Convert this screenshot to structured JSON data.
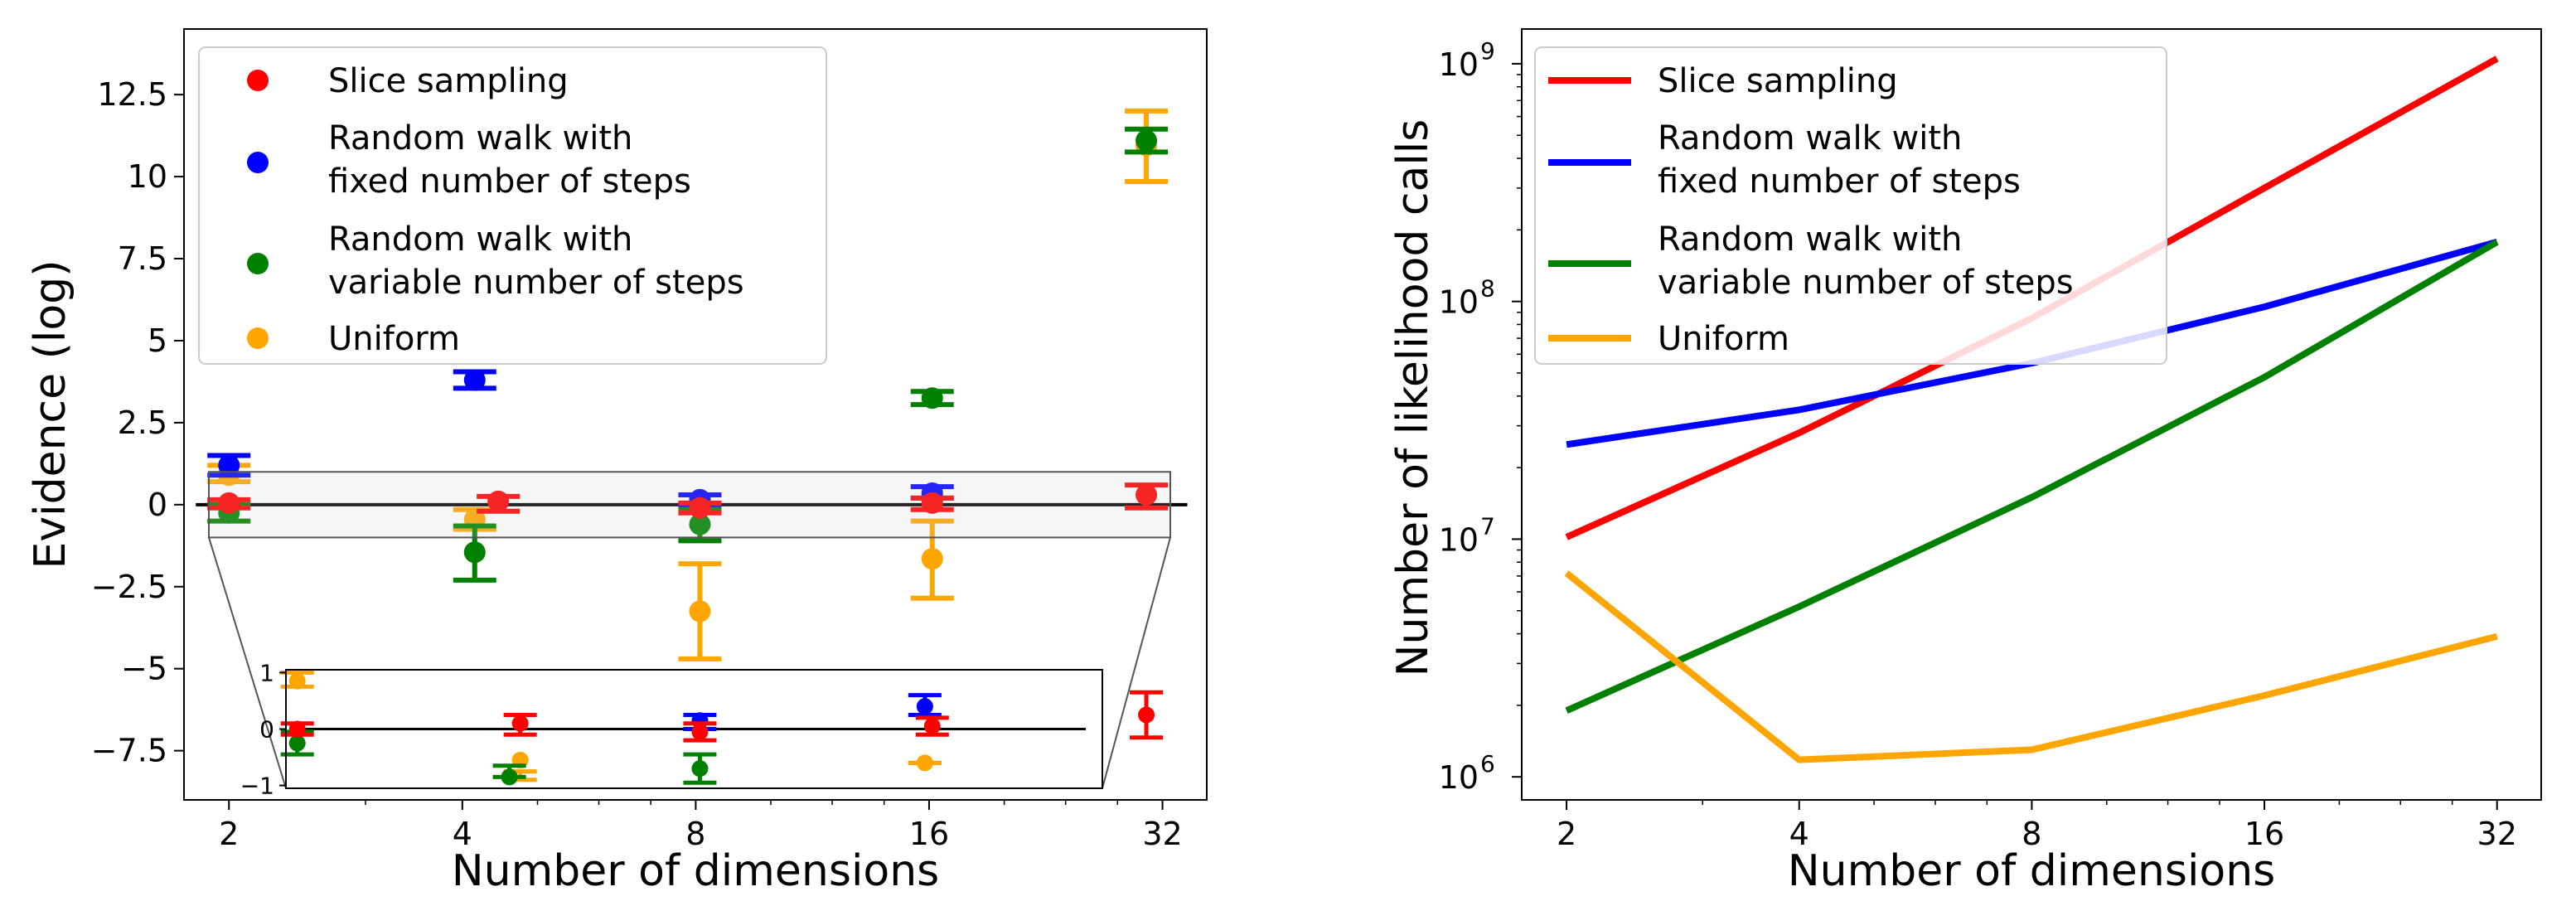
{
  "colors": {
    "slice": "#ff0000",
    "rw_fixed": "#0000ff",
    "rw_variable": "#008000",
    "uniform": "#ffa500"
  },
  "chart_data": [
    {
      "type": "scatter",
      "subtype": "errorbar",
      "xlabel": "Number of dimensions",
      "ylabel": "Evidence (log)",
      "xscale": "log2",
      "x_ticks": [
        2,
        4,
        8,
        16,
        32
      ],
      "x_tick_labels": [
        "2",
        "4",
        "8",
        "16",
        "32"
      ],
      "y_ticks": [
        -7.5,
        -5,
        -2.5,
        0,
        2.5,
        5,
        7.5,
        10,
        12.5
      ],
      "y_tick_labels": [
        "−7.5",
        "−5",
        "−2.5",
        "0",
        "2.5",
        "5",
        "7.5",
        "10",
        "12.5"
      ],
      "ylim": [
        -9.0,
        14.5
      ],
      "xlim": [
        1.75,
        36.5
      ],
      "reference_line": 0,
      "legend": {
        "placement": "top-left"
      },
      "series": [
        {
          "key": "slice",
          "name": "Slice sampling",
          "legend_lines": [
            "Slice sampling"
          ],
          "color": "#ff0000",
          "points": [
            {
              "x": 2.0,
              "y": 0.05,
              "lo": -0.1,
              "hi": 0.15
            },
            {
              "x": 4.45,
              "y": 0.1,
              "lo": -0.2,
              "hi": 0.25
            },
            {
              "x": 8.1,
              "y": -0.1,
              "lo": -0.25,
              "hi": 0.05
            },
            {
              "x": 16.15,
              "y": 0.05,
              "lo": -0.15,
              "hi": 0.2
            },
            {
              "x": 30.5,
              "y": 0.3,
              "lo": -0.1,
              "hi": 0.6
            }
          ]
        },
        {
          "key": "rw_fixed",
          "name": "Random walk with fixed number of steps",
          "legend_lines": [
            "Random walk with",
            "fixed number of steps"
          ],
          "color": "#0000ff",
          "points": [
            {
              "x": 2.0,
              "y": 1.2,
              "lo": 0.9,
              "hi": 1.5
            },
            {
              "x": 4.15,
              "y": 3.8,
              "lo": 3.55,
              "hi": 4.05
            },
            {
              "x": 8.1,
              "y": 0.15,
              "lo": 0.0,
              "hi": 0.3
            },
            {
              "x": 16.15,
              "y": 0.35,
              "lo": 0.2,
              "hi": 0.55
            }
          ]
        },
        {
          "key": "rw_variable",
          "name": "Random walk with variable number of steps",
          "legend_lines": [
            "Random walk with",
            "variable number of steps"
          ],
          "color": "#008000",
          "points": [
            {
              "x": 2.0,
              "y": -0.25,
              "lo": -0.5,
              "hi": 0.0
            },
            {
              "x": 4.15,
              "y": -1.45,
              "lo": -2.3,
              "hi": -0.65
            },
            {
              "x": 8.1,
              "y": -0.6,
              "lo": -1.1,
              "hi": -0.15
            },
            {
              "x": 16.15,
              "y": 3.25,
              "lo": 3.05,
              "hi": 3.45
            },
            {
              "x": 30.5,
              "y": 11.1,
              "lo": 10.75,
              "hi": 11.45
            }
          ]
        },
        {
          "key": "uniform",
          "name": "Uniform",
          "legend_lines": [
            "Uniform"
          ],
          "color": "#ffa500",
          "points": [
            {
              "x": 2.0,
              "y": 0.9,
              "lo": 0.7,
              "hi": 1.2
            },
            {
              "x": 4.15,
              "y": -0.45,
              "lo": -0.75,
              "hi": -0.15
            },
            {
              "x": 8.1,
              "y": -3.25,
              "lo": -4.7,
              "hi": -1.8
            },
            {
              "x": 16.15,
              "y": -1.65,
              "lo": -2.85,
              "hi": -0.5
            },
            {
              "x": 30.5,
              "y": 10.95,
              "lo": 9.85,
              "hi": 12.0
            }
          ]
        }
      ],
      "zoom_region": {
        "ylim": [
          -1.0,
          1.0
        ]
      },
      "inset": {
        "ylim": [
          -1.05,
          1.05
        ],
        "y_ticks": [
          -1,
          0,
          1
        ],
        "y_tick_labels": [
          "−1",
          "0",
          "1"
        ],
        "series": [
          {
            "key": "slice",
            "points": [
              {
                "x": 2.45,
                "y": 0.0,
                "lo": -0.1,
                "hi": 0.1
              },
              {
                "x": 4.75,
                "y": 0.1,
                "lo": -0.1,
                "hi": 0.25
              },
              {
                "x": 8.1,
                "y": -0.05,
                "lo": -0.2,
                "hi": 0.1
              },
              {
                "x": 16.15,
                "y": 0.05,
                "lo": -0.1,
                "hi": 0.2
              },
              {
                "x": 30.5,
                "y": 0.25,
                "lo": -0.15,
                "hi": 0.65
              }
            ]
          },
          {
            "key": "rw_fixed",
            "points": [
              {
                "x": 8.1,
                "y": 0.15,
                "lo": 0.0,
                "hi": 0.25
              },
              {
                "x": 15.8,
                "y": 0.4,
                "lo": 0.25,
                "hi": 0.6
              }
            ]
          },
          {
            "key": "rw_variable",
            "points": [
              {
                "x": 2.45,
                "y": -0.25,
                "lo": -0.45,
                "hi": -0.05
              },
              {
                "x": 4.6,
                "y": -0.85,
                "lo": -0.85,
                "hi": -0.65
              },
              {
                "x": 8.1,
                "y": -0.7,
                "lo": -0.95,
                "hi": -0.45
              }
            ]
          },
          {
            "key": "uniform",
            "points": [
              {
                "x": 2.45,
                "y": 0.85,
                "lo": 0.75,
                "hi": 1.0
              },
              {
                "x": 4.75,
                "y": -0.55,
                "lo": -0.9,
                "hi": -0.75
              },
              {
                "x": 15.8,
                "y": -0.6,
                "lo": -0.6,
                "hi": -0.6
              }
            ]
          }
        ]
      }
    },
    {
      "type": "line",
      "xlabel": "Number of dimensions",
      "ylabel": "Number of likelihood calls",
      "xscale": "log2",
      "yscale": "log10",
      "x": [
        2,
        4,
        8,
        16,
        32
      ],
      "x_tick_labels": [
        "2",
        "4",
        "8",
        "16",
        "32"
      ],
      "y_ticks": [
        1000000,
        10000000,
        100000000,
        1000000000
      ],
      "y_tick_labels": [
        {
          "base": "10",
          "exp": "6"
        },
        {
          "base": "10",
          "exp": "7"
        },
        {
          "base": "10",
          "exp": "8"
        },
        {
          "base": "10",
          "exp": "9"
        }
      ],
      "ylim": [
        800000,
        1400000000
      ],
      "xlim": [
        1.75,
        36.5
      ],
      "legend": {
        "placement": "top-left"
      },
      "series": [
        {
          "key": "slice",
          "name": "Slice sampling",
          "legend_lines": [
            "Slice sampling"
          ],
          "color": "#ff0000",
          "values": [
            10200000,
            28000000,
            85000000,
            300000000,
            1050000000
          ]
        },
        {
          "key": "rw_fixed",
          "name": "Random walk with fixed number of steps",
          "legend_lines": [
            "Random walk with",
            "fixed number of steps"
          ],
          "color": "#0000ff",
          "values": [
            25000000,
            35000000,
            55000000,
            95000000,
            178000000
          ]
        },
        {
          "key": "rw_variable",
          "name": "Random walk with variable number of steps",
          "legend_lines": [
            "Random walk with",
            "variable number of steps"
          ],
          "color": "#008000",
          "values": [
            1900000,
            5200000,
            15000000,
            48000000,
            178000000
          ]
        },
        {
          "key": "uniform",
          "name": "Uniform",
          "legend_lines": [
            "Uniform"
          ],
          "color": "#ffa500",
          "values": [
            7200000,
            1180000,
            1300000,
            2200000,
            3900000
          ]
        }
      ]
    }
  ]
}
